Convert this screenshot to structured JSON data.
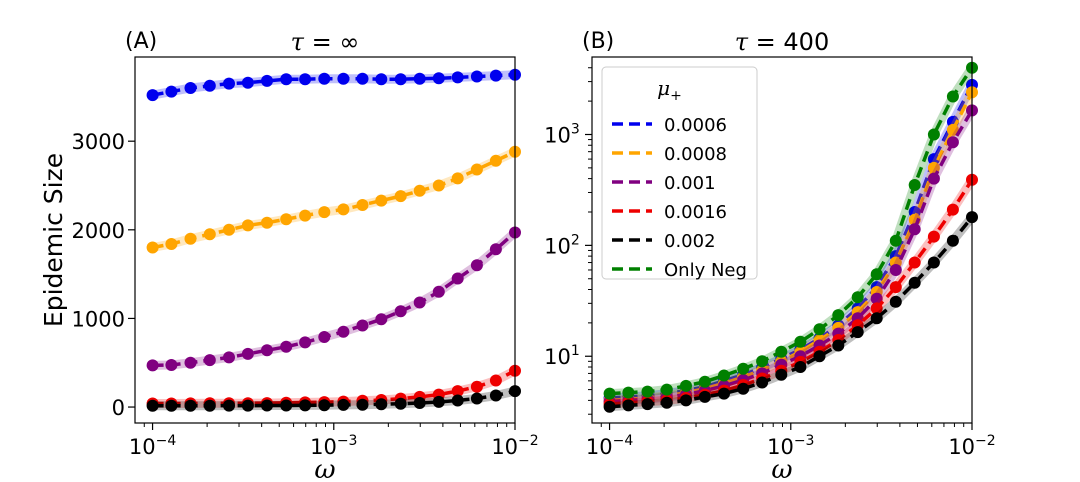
{
  "chart_data": [
    {
      "type": "line",
      "panel_label": "(A)",
      "title_symbol": "τ",
      "title_value": "= ∞",
      "xlabel": "ω",
      "ylabel": "Epidemic Size",
      "xscale": "log",
      "yscale": "linear",
      "xlim": [
        8e-05,
        0.01
      ],
      "ylim": [
        -180,
        3950
      ],
      "xticks": [
        {
          "base": "10",
          "exp": "−4"
        },
        {
          "base": "10",
          "exp": "−3"
        },
        {
          "base": "10",
          "exp": "−2"
        }
      ],
      "yticks": [
        "0",
        "1000",
        "2000",
        "3000"
      ],
      "ytick_values": [
        0,
        1000,
        2000,
        3000
      ],
      "series": [
        {
          "name": "0.0006",
          "color": "#0000ee",
          "values": [
            3520,
            3560,
            3600,
            3625,
            3650,
            3660,
            3680,
            3700,
            3700,
            3705,
            3705,
            3705,
            3700,
            3700,
            3705,
            3710,
            3720,
            3730,
            3740,
            3750
          ]
        },
        {
          "name": "0.0008",
          "color": "#ffa500",
          "values": [
            1800,
            1840,
            1900,
            1950,
            2000,
            2050,
            2080,
            2120,
            2160,
            2200,
            2230,
            2280,
            2330,
            2380,
            2440,
            2500,
            2580,
            2680,
            2780,
            2880
          ]
        },
        {
          "name": "0.001",
          "color": "#800080",
          "values": [
            470,
            475,
            500,
            530,
            560,
            600,
            640,
            680,
            730,
            790,
            850,
            920,
            990,
            1080,
            1180,
            1300,
            1450,
            1600,
            1780,
            1970
          ]
        },
        {
          "name": "0.0016",
          "color": "#ee0000",
          "values": [
            40,
            40,
            41,
            42,
            42,
            43,
            45,
            48,
            52,
            56,
            62,
            70,
            80,
            95,
            115,
            140,
            180,
            230,
            300,
            410
          ]
        },
        {
          "name": "0.002",
          "color": "#000000",
          "values": [
            15,
            15,
            15,
            15,
            16,
            16,
            17,
            18,
            19,
            21,
            24,
            27,
            32,
            38,
            46,
            58,
            74,
            96,
            130,
            180
          ]
        }
      ],
      "x": [
        0.0001,
        0.000127,
        0.000162,
        0.000207,
        0.000264,
        0.000336,
        0.000428,
        0.000546,
        0.000695,
        0.000886,
        0.00113,
        0.00144,
        0.00183,
        0.00234,
        0.00298,
        0.0038,
        0.00483,
        0.00616,
        0.00785,
        0.01
      ]
    },
    {
      "type": "line",
      "panel_label": "(B)",
      "title_symbol": "τ",
      "title_value": "= 400",
      "xlabel": "ω",
      "ylabel": "",
      "xscale": "log",
      "yscale": "log",
      "xlim": [
        8e-05,
        0.01
      ],
      "ylim": [
        2.5,
        5000
      ],
      "xticks": [
        {
          "base": "10",
          "exp": "−4"
        },
        {
          "base": "10",
          "exp": "−3"
        },
        {
          "base": "10",
          "exp": "−2"
        }
      ],
      "yticks": [
        {
          "base": "10",
          "exp": "1"
        },
        {
          "base": "10",
          "exp": "2"
        },
        {
          "base": "10",
          "exp": "3"
        }
      ],
      "ytick_values": [
        10,
        100,
        1000
      ],
      "legend_title": "μ",
      "legend_title_sub": "+",
      "legend_position": "upper-left",
      "series": [
        {
          "name": "0.0006",
          "color": "#0000ee",
          "values": [
            4.2,
            4.3,
            4.4,
            4.6,
            4.9,
            5.3,
            6.0,
            6.8,
            7.9,
            9.5,
            11.5,
            14.5,
            19.0,
            27.0,
            42.0,
            80.0,
            200.0,
            600.0,
            1300.0,
            2800.0
          ]
        },
        {
          "name": "0.0008",
          "color": "#ffa500",
          "values": [
            4.0,
            4.1,
            4.2,
            4.4,
            4.7,
            5.1,
            5.7,
            6.5,
            7.5,
            9.0,
            11.0,
            14.0,
            18.0,
            25.0,
            38.0,
            70.0,
            170.0,
            500.0,
            1100.0,
            2400.0
          ]
        },
        {
          "name": "0.001",
          "color": "#800080",
          "values": [
            3.9,
            4.0,
            4.1,
            4.3,
            4.5,
            4.9,
            5.4,
            6.1,
            7.0,
            8.4,
            10.0,
            12.5,
            16.0,
            22.0,
            33.0,
            60.0,
            140.0,
            400.0,
            850.0,
            1650.0
          ]
        },
        {
          "name": "0.0016",
          "color": "#ee0000",
          "values": [
            3.7,
            3.8,
            3.9,
            4.0,
            4.2,
            4.5,
            4.9,
            5.5,
            6.3,
            7.4,
            8.9,
            11.0,
            14.0,
            19.0,
            27.0,
            42.0,
            70.0,
            120.0,
            210.0,
            390.0
          ]
        },
        {
          "name": "0.002",
          "color": "#000000",
          "values": [
            3.5,
            3.6,
            3.7,
            3.8,
            4.0,
            4.3,
            4.6,
            5.1,
            5.8,
            6.8,
            8.0,
            10.0,
            12.5,
            16.5,
            22.0,
            31.0,
            46.0,
            70.0,
            110.0,
            180.0
          ]
        },
        {
          "name": "Only Neg",
          "color": "#008000",
          "values": [
            4.6,
            4.7,
            4.8,
            5.0,
            5.4,
            5.9,
            6.7,
            7.7,
            9.0,
            11.0,
            13.5,
            17.5,
            23.5,
            34.0,
            55.0,
            110.0,
            350.0,
            1000.0,
            2200.0,
            4000.0
          ]
        }
      ],
      "x": [
        0.0001,
        0.000127,
        0.000162,
        0.000207,
        0.000264,
        0.000336,
        0.000428,
        0.000546,
        0.000695,
        0.000886,
        0.00113,
        0.00144,
        0.00183,
        0.00234,
        0.00298,
        0.0038,
        0.00483,
        0.00616,
        0.00785,
        0.01
      ]
    }
  ]
}
